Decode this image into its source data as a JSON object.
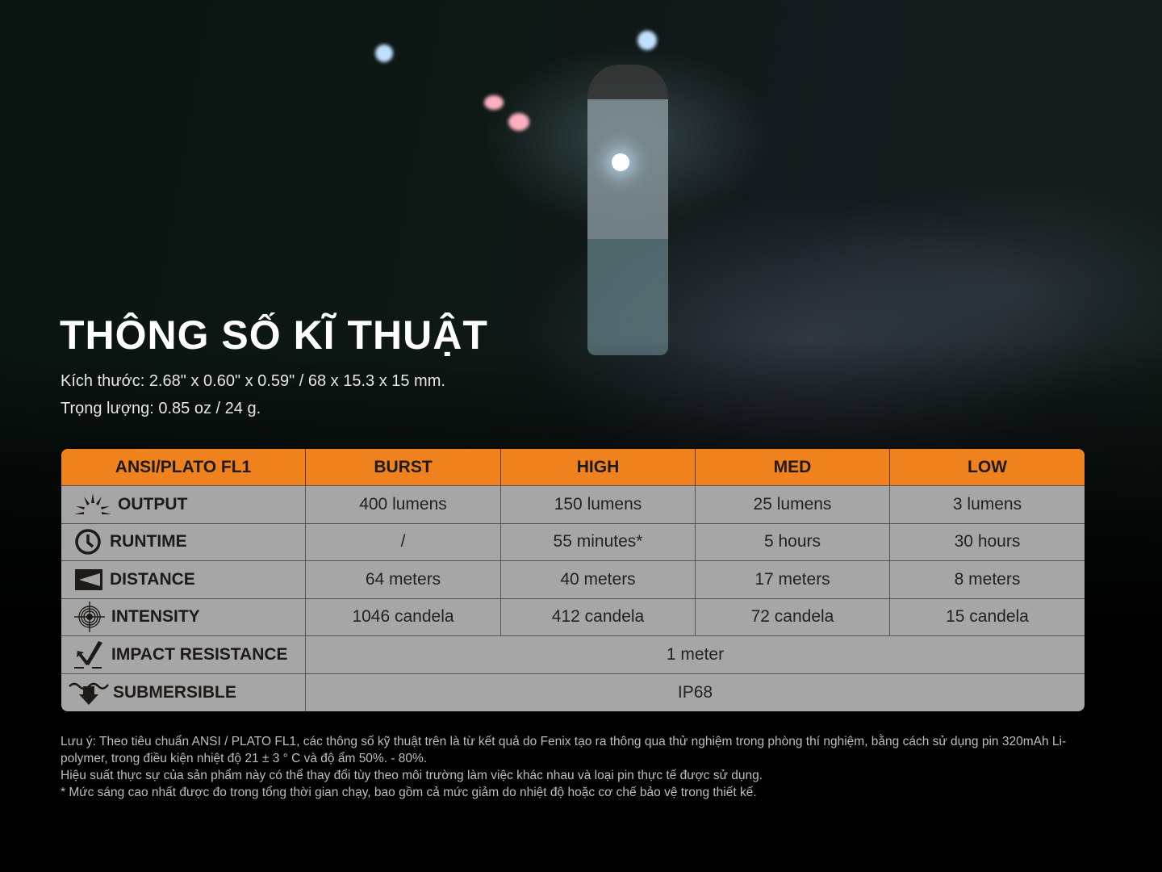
{
  "title": "THÔNG SỐ KĨ THUẬT",
  "dimensions": "Kích thước: 2.68\" x 0.60\" x 0.59\" / 68 x 15.3 x 15 mm.",
  "weight": "Trọng lượng: 0.85 oz / 24 g.",
  "colors": {
    "header": "#f0821e",
    "table_body": "#a6a6a6",
    "background": "#000000"
  },
  "table": {
    "headers": [
      "ANSI/PLATO FL1",
      "BURST",
      "HIGH",
      "MED",
      "LOW"
    ],
    "rows": [
      {
        "icon": "burst-icon",
        "label": "OUTPUT",
        "values": [
          "400 lumens",
          "150 lumens",
          "25 lumens",
          "3 lumens"
        ]
      },
      {
        "icon": "clock-icon",
        "label": "RUNTIME",
        "values": [
          "/",
          "55 minutes*",
          "5 hours",
          "30 hours"
        ]
      },
      {
        "icon": "distance-icon",
        "label": "DISTANCE",
        "values": [
          "64 meters",
          "40 meters",
          "17 meters",
          "8 meters"
        ]
      },
      {
        "icon": "target-icon",
        "label": "INTENSITY",
        "values": [
          "1046 candela",
          "412 candela",
          "72 candela",
          "15 candela"
        ]
      },
      {
        "icon": "impact-icon",
        "label": "IMPACT RESISTANCE",
        "value": "1 meter"
      },
      {
        "icon": "submersible-icon",
        "label": "SUBMERSIBLE",
        "value": "IP68"
      }
    ]
  },
  "notes": [
    "Lưu ý: Theo tiêu chuẩn ANSI / PLATO FL1, các thông số kỹ thuật trên là từ kết quả do Fenix tạo ra thông qua thử nghiệm trong phòng thí nghiệm, bằng cách sử dụng pin 320mAh Li-polymer, trong điều kiện nhiệt độ 21 ± 3 ° C và độ ẩm 50%. - 80%.",
    "Hiệu suất thực sự của sản phẩm này có thể thay đổi tùy theo môi trường làm việc khác nhau và loại pin thực tế được sử dụng.",
    "* Mức sáng cao nhất được đo trong tổng thời gian chạy, bao gồm cả mức giảm do nhiệt độ hoặc cơ chế bảo vệ trong thiết kế."
  ]
}
